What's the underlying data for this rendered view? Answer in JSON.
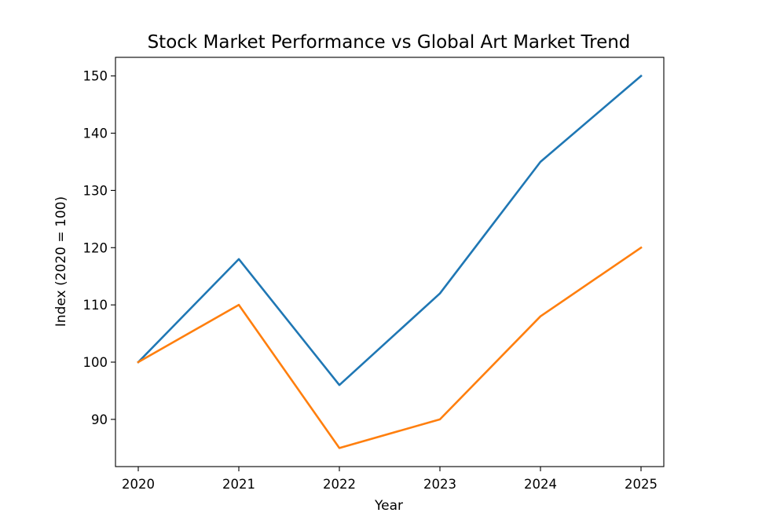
{
  "chart_data": {
    "type": "line",
    "title": "Stock Market Performance vs Global Art Market Trend",
    "xlabel": "Year",
    "ylabel": "Index (2020 = 100)",
    "x": [
      "2020",
      "2021",
      "2022",
      "2023",
      "2024",
      "2025"
    ],
    "yticks": [
      90,
      100,
      110,
      120,
      130,
      140,
      150
    ],
    "ylim": [
      81.75,
      153.25
    ],
    "grid": false,
    "legend": "none",
    "series": [
      {
        "values": [
          100,
          118,
          96,
          112,
          135,
          150
        ],
        "color": "#1f77b4"
      },
      {
        "values": [
          100,
          110,
          85,
          90,
          108,
          120
        ],
        "color": "#ff7f0e"
      }
    ]
  }
}
